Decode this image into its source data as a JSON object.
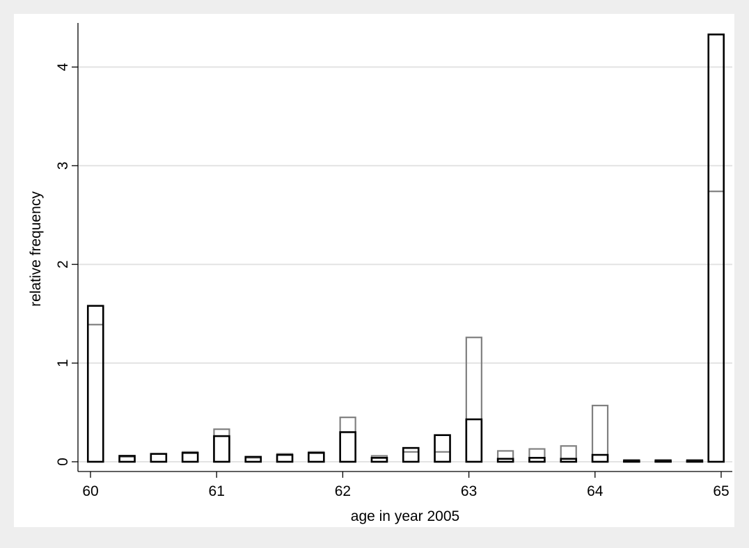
{
  "chart_data": {
    "type": "bar",
    "title": "",
    "xlabel": "age in year 2005",
    "ylabel": "relative frequency",
    "xlim": [
      60,
      65
    ],
    "ylim": [
      0,
      4.4
    ],
    "xticks": [
      "60",
      "61",
      "62",
      "63",
      "64",
      "65"
    ],
    "yticks": [
      "0",
      "1",
      "2",
      "3",
      "4"
    ],
    "grid": "horizontal",
    "legend": "none",
    "x": [
      60.04,
      60.29,
      60.54,
      60.79,
      61.04,
      61.29,
      61.54,
      61.79,
      62.04,
      62.29,
      62.54,
      62.79,
      63.04,
      63.29,
      63.54,
      63.79,
      64.04,
      64.29,
      64.54,
      64.79,
      64.96
    ],
    "series": [
      {
        "color": "#808080",
        "values": [
          1.39,
          0.05,
          0.08,
          0.1,
          0.33,
          0.04,
          0.08,
          0.1,
          0.45,
          0.06,
          0.1,
          0.1,
          1.26,
          0.11,
          0.13,
          0.16,
          0.57,
          0.02,
          0.02,
          0.02,
          2.74
        ]
      },
      {
        "color": "#000000",
        "values": [
          1.58,
          0.06,
          0.08,
          0.09,
          0.26,
          0.05,
          0.07,
          0.09,
          0.3,
          0.04,
          0.14,
          0.27,
          0.43,
          0.03,
          0.04,
          0.03,
          0.07,
          0.01,
          0.01,
          0.01,
          4.33
        ]
      }
    ]
  }
}
